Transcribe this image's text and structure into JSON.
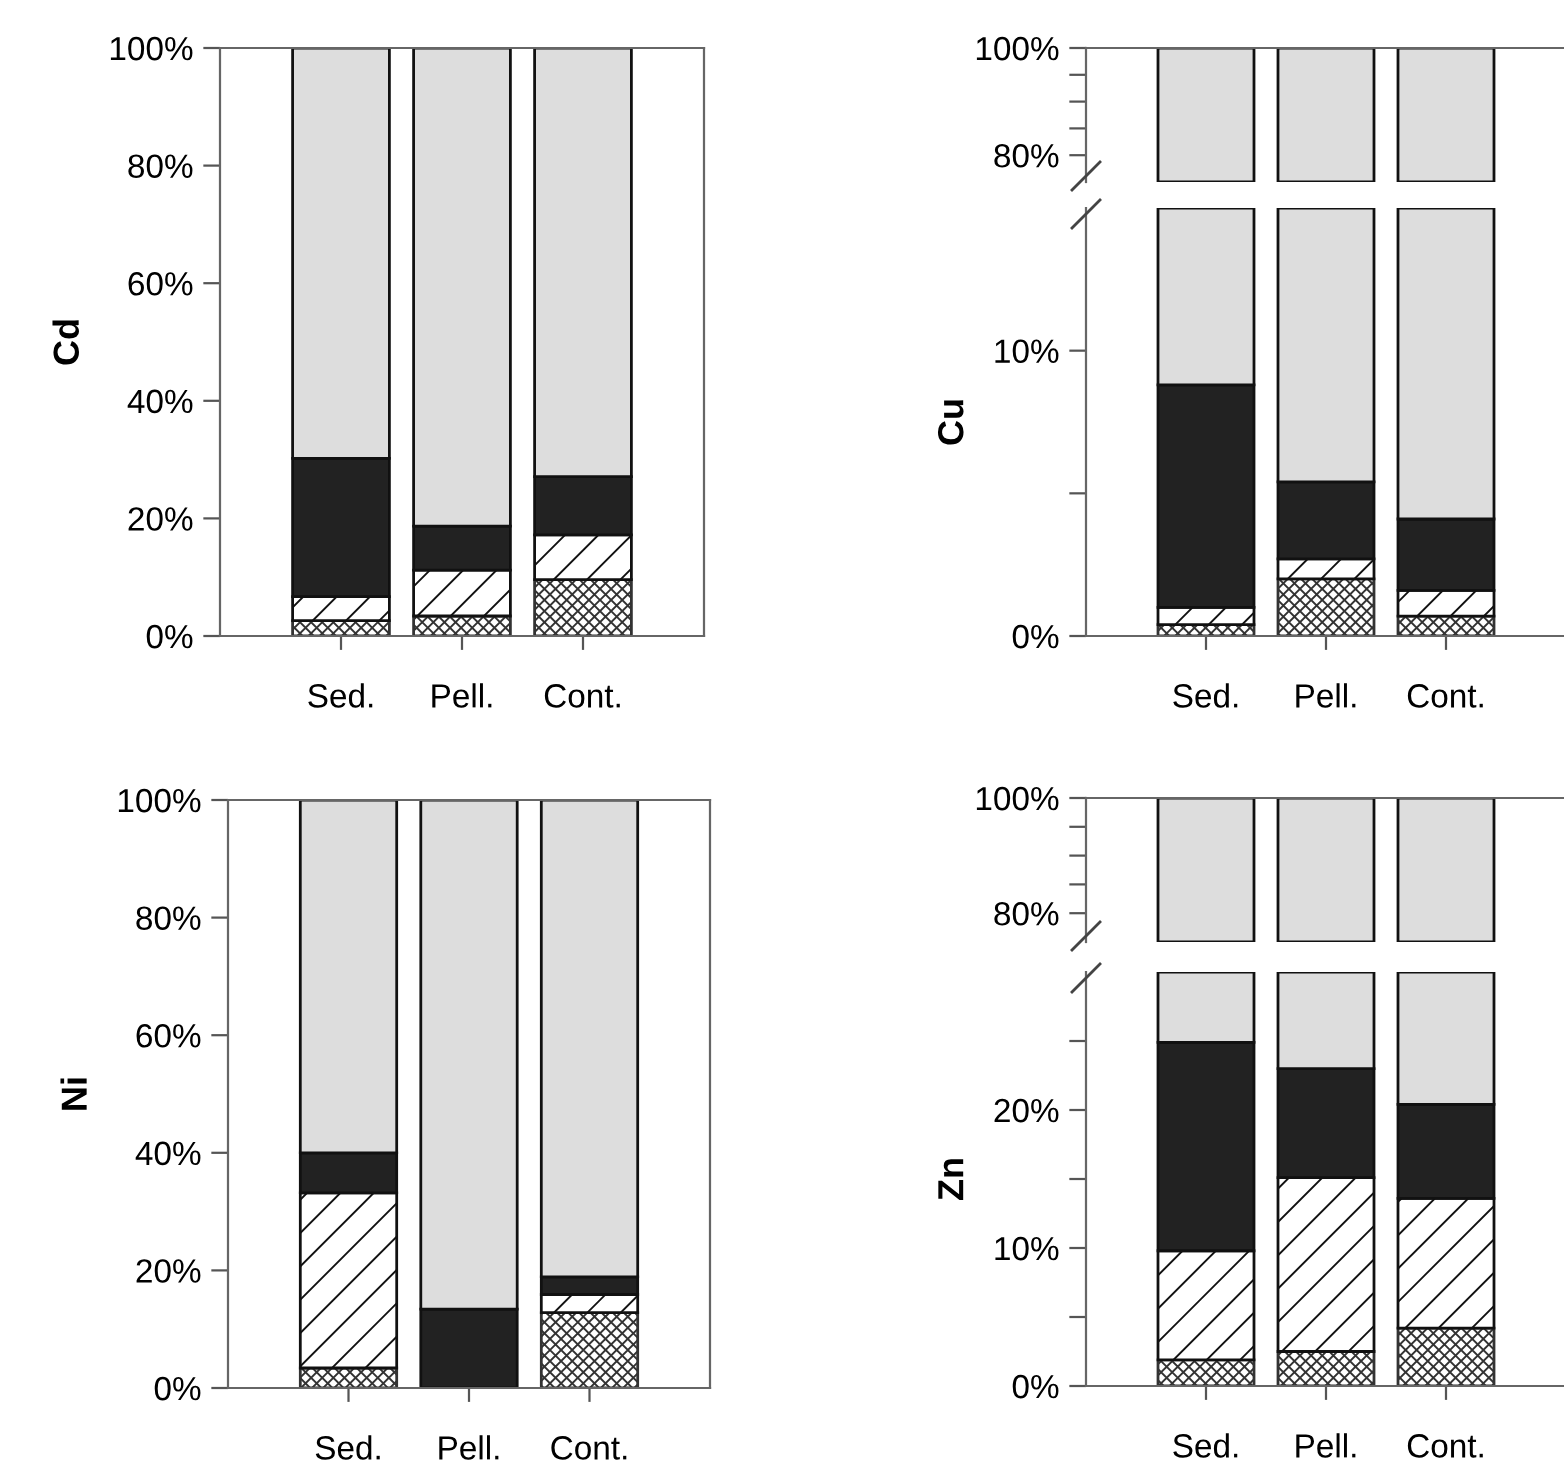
{
  "chart_data": [
    {
      "type": "bar",
      "stacked": true,
      "ylabel": "Cd",
      "categories": [
        "Sed.",
        "Pell.",
        "Cont."
      ],
      "ylim": [
        0,
        100
      ],
      "yticks": [
        {
          "value": 0,
          "label": "0%"
        },
        {
          "value": 20,
          "label": "20%"
        },
        {
          "value": 40,
          "label": "40%"
        },
        {
          "value": 60,
          "label": "60%"
        },
        {
          "value": 80,
          "label": "80%"
        },
        {
          "value": 100,
          "label": "100%"
        }
      ],
      "series": [
        {
          "color": "#333333",
          "values": [
            2.6,
            3.4,
            9.6
          ]
        },
        {
          "color": "#111111",
          "values": [
            4.1,
            7.8,
            7.6
          ]
        },
        {
          "color": "#222222",
          "values": [
            23.5,
            7.5,
            9.9
          ]
        },
        {
          "color": "#dddddd",
          "values": [
            69.8,
            81.3,
            72.9
          ]
        }
      ]
    },
    {
      "type": "bar",
      "stacked": true,
      "ylabel": "Ni",
      "categories": [
        "Sed.",
        "Pell.",
        "Cont."
      ],
      "ylim": [
        0,
        100
      ],
      "yticks": [
        {
          "value": 0,
          "label": "0%"
        },
        {
          "value": 20,
          "label": "20%"
        },
        {
          "value": 40,
          "label": "40%"
        },
        {
          "value": 60,
          "label": "60%"
        },
        {
          "value": 80,
          "label": "80%"
        },
        {
          "value": 100,
          "label": "100%"
        }
      ],
      "series": [
        {
          "color": "#333333",
          "values": [
            3.4,
            0,
            12.8
          ]
        },
        {
          "color": "#111111",
          "values": [
            29.8,
            0,
            3.1
          ]
        },
        {
          "color": "#222222",
          "values": [
            6.8,
            13.4,
            3.0
          ]
        },
        {
          "color": "#dddddd",
          "values": [
            60.0,
            86.6,
            81.1
          ]
        }
      ]
    },
    {
      "type": "bar",
      "categories": [
        null,
        null,
        null
      ],
      "tick_labels": "y",
      "ylim": [
        75,
        100
      ],
      "yticks": [
        {
          "value": 80,
          "label": "80%"
        },
        {
          "value": 85,
          "label": null
        },
        {
          "value": 90,
          "label": null
        },
        {
          "value": 95,
          "label": null
        },
        {
          "value": 100,
          "label": "100%"
        }
      ],
      "base": [
        75,
        75,
        75
      ],
      "values": [
        25,
        25,
        25
      ],
      "color": "#dddddd"
    },
    {
      "type": "bar",
      "stacked": true,
      "ylabel": "Cu",
      "categories": [
        "Sed.",
        "Pell.",
        "Cont."
      ],
      "ylim": [
        0,
        15
      ],
      "yticks": [
        {
          "value": 0,
          "label": "0%"
        },
        {
          "value": 5,
          "label": null
        },
        {
          "value": 10,
          "label": "10%"
        }
      ],
      "series": [
        {
          "color": "#333333",
          "values": [
            0.4,
            2.0,
            0.7
          ]
        },
        {
          "color": "#111111",
          "values": [
            0.6,
            0.7,
            0.9
          ]
        },
        {
          "color": "#222222",
          "values": [
            7.8,
            2.7,
            2.5
          ]
        },
        {
          "color": "#dddddd",
          "values": [
            6.2,
            9.6,
            10.9
          ]
        }
      ]
    },
    {
      "type": "bar",
      "categories": [
        null,
        null,
        null
      ],
      "tick_labels": "y",
      "ylim": [
        75,
        100
      ],
      "yticks": [
        {
          "value": 80,
          "label": "80%"
        },
        {
          "value": 85,
          "label": null
        },
        {
          "value": 90,
          "label": null
        },
        {
          "value": 95,
          "label": null
        },
        {
          "value": 100,
          "label": "100%"
        }
      ],
      "base": [
        75,
        75,
        75
      ],
      "values": [
        25,
        25,
        25
      ],
      "color": "#dddddd"
    },
    {
      "type": "bar",
      "stacked": true,
      "ylabel": "Zn",
      "categories": [
        "Sed.",
        "Pell.",
        "Cont."
      ],
      "ylim": [
        0,
        30
      ],
      "yticks": [
        {
          "value": 0,
          "label": "0%"
        },
        {
          "value": 5,
          "label": null
        },
        {
          "value": 10,
          "label": "10%"
        },
        {
          "value": 15,
          "label": null
        },
        {
          "value": 20,
          "label": "20%"
        },
        {
          "value": 25,
          "label": null
        }
      ],
      "series": [
        {
          "color": "#333333",
          "values": [
            1.9,
            2.5,
            4.2
          ]
        },
        {
          "color": "#111111",
          "values": [
            7.9,
            12.6,
            9.4
          ]
        },
        {
          "color": "#222222",
          "values": [
            15.1,
            7.9,
            6.8
          ]
        },
        {
          "color": "#dddddd",
          "values": [
            5.1,
            7.0,
            9.6
          ]
        }
      ]
    }
  ]
}
